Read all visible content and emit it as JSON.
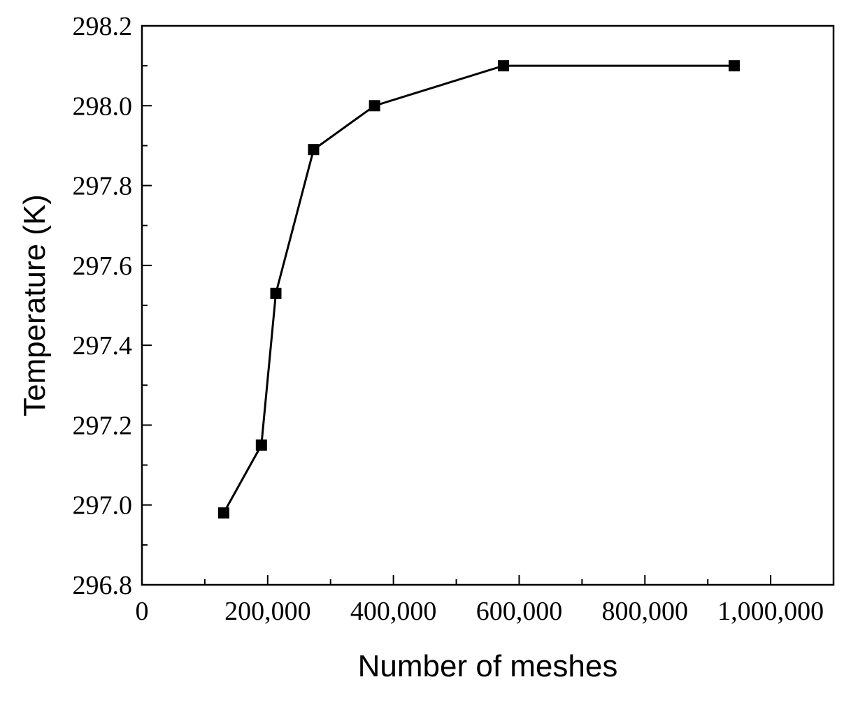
{
  "chart_data": {
    "type": "line",
    "title": "",
    "xlabel": "Number of meshes",
    "ylabel": "Temperature (K)",
    "xlim": [
      0,
      1100000
    ],
    "ylim": [
      296.8,
      298.2
    ],
    "xticks": [
      0,
      200000,
      400000,
      600000,
      800000,
      1000000
    ],
    "xtick_labels": [
      "0",
      "200,000",
      "400,000",
      "600,000",
      "800,000",
      "1,000,000"
    ],
    "yticks": [
      296.8,
      297.0,
      297.2,
      297.4,
      297.6,
      297.8,
      298.0,
      298.2
    ],
    "ytick_labels": [
      "296.8",
      "297.0",
      "297.2",
      "297.4",
      "297.6",
      "297.8",
      "298.0",
      "298.2"
    ],
    "grid": false,
    "legend": "none",
    "series": [
      {
        "marker": "square",
        "color": "#000000",
        "x": [
          130000,
          190000,
          213000,
          273000,
          370000,
          575000,
          942000
        ],
        "y": [
          296.98,
          297.15,
          297.53,
          297.89,
          298.0,
          298.1,
          298.1
        ]
      }
    ]
  }
}
